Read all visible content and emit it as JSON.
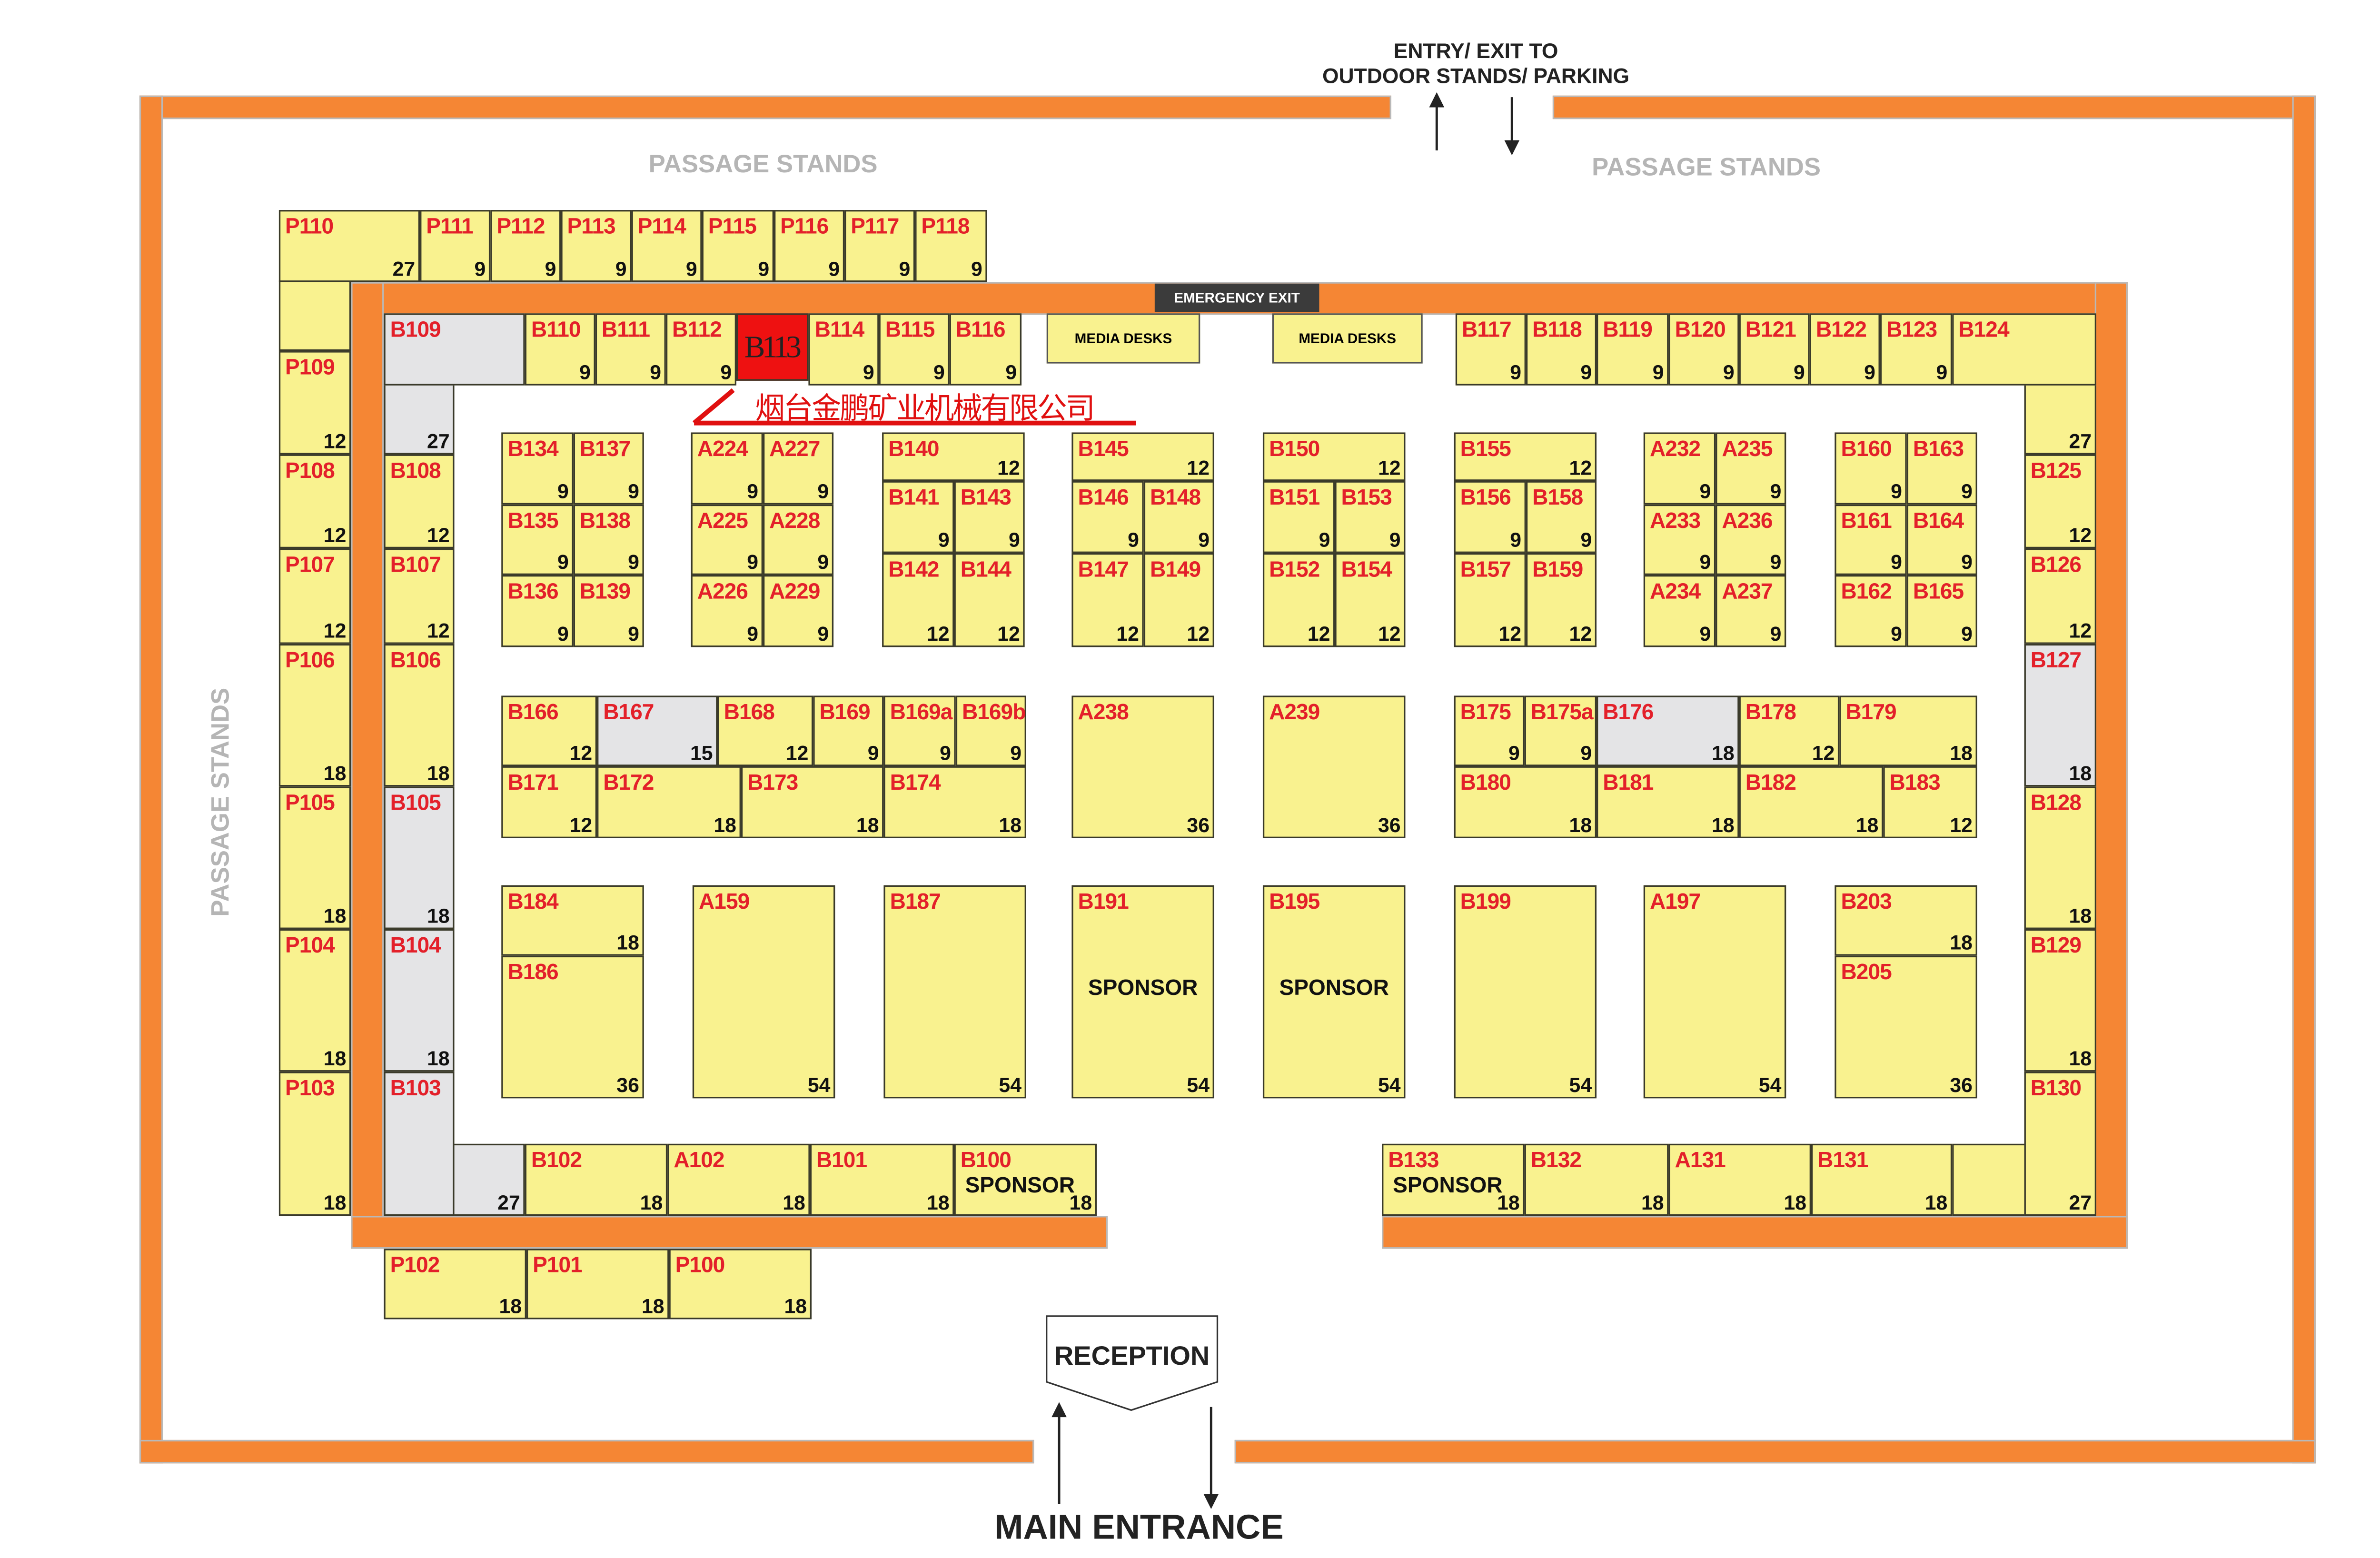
{
  "labels": {
    "entry_line1": "ENTRY/ EXIT TO",
    "entry_line2": "OUTDOOR STANDS/ PARKING",
    "passage_top_left": "PASSAGE STANDS",
    "passage_top_right": "PASSAGE STANDS",
    "passage_left": "PASSAGE STANDS",
    "emergency_exit": "EMERGENCY EXIT",
    "media_desks_1": "MEDIA DESKS",
    "media_desks_2": "MEDIA DESKS",
    "reception": "RECEPTION",
    "main_entrance": "MAIN ENTRANCE",
    "annotation": "烟台金鹏矿业机械有限公司"
  },
  "colors": {
    "booth": "#f9f28f",
    "booth_taken": "#e4e4e6",
    "highlight": "#ee1111",
    "aisle_wall": "#f58634",
    "booth_label": "#e3202a"
  },
  "booths": [
    {
      "id": "P110",
      "size": "27"
    },
    {
      "id": "P111",
      "size": "9"
    },
    {
      "id": "P112",
      "size": "9"
    },
    {
      "id": "P113",
      "size": "9"
    },
    {
      "id": "P114",
      "size": "9"
    },
    {
      "id": "P115",
      "size": "9"
    },
    {
      "id": "P116",
      "size": "9"
    },
    {
      "id": "P117",
      "size": "9"
    },
    {
      "id": "P118",
      "size": "9"
    },
    {
      "id": "P109",
      "size": "12"
    },
    {
      "id": "P108",
      "size": "12"
    },
    {
      "id": "P107",
      "size": "12"
    },
    {
      "id": "P106",
      "size": "18"
    },
    {
      "id": "P105",
      "size": "18"
    },
    {
      "id": "P104",
      "size": "18"
    },
    {
      "id": "P103",
      "size": "18"
    },
    {
      "id": "B109",
      "size": "27",
      "fill": "grey"
    },
    {
      "id": "B110",
      "size": "9"
    },
    {
      "id": "B111",
      "size": "9"
    },
    {
      "id": "B112",
      "size": "9"
    },
    {
      "id": "B113",
      "size": "",
      "fill": "red"
    },
    {
      "id": "B114",
      "size": "9"
    },
    {
      "id": "B115",
      "size": "9"
    },
    {
      "id": "B116",
      "size": "9"
    },
    {
      "id": "B117",
      "size": "9"
    },
    {
      "id": "B118",
      "size": "9"
    },
    {
      "id": "B119",
      "size": "9"
    },
    {
      "id": "B120",
      "size": "9"
    },
    {
      "id": "B121",
      "size": "9"
    },
    {
      "id": "B122",
      "size": "9"
    },
    {
      "id": "B123",
      "size": "9"
    },
    {
      "id": "B124",
      "size": "27"
    },
    {
      "id": "B125",
      "size": "12"
    },
    {
      "id": "B126",
      "size": "12"
    },
    {
      "id": "B127",
      "size": "18",
      "fill": "grey"
    },
    {
      "id": "B128",
      "size": "18"
    },
    {
      "id": "B129",
      "size": "18"
    },
    {
      "id": "B130",
      "size": "27"
    },
    {
      "id": "B108",
      "size": "12"
    },
    {
      "id": "B107",
      "size": "12"
    },
    {
      "id": "B106",
      "size": "18"
    },
    {
      "id": "B105",
      "size": "18",
      "fill": "grey"
    },
    {
      "id": "B104",
      "size": "18",
      "fill": "grey"
    },
    {
      "id": "B103",
      "size": "27",
      "fill": "grey"
    },
    {
      "id": "B102",
      "size": "18"
    },
    {
      "id": "A102",
      "size": "18"
    },
    {
      "id": "B101",
      "size": "18"
    },
    {
      "id": "B100",
      "size": "18",
      "note": "SPONSOR"
    },
    {
      "id": "P102",
      "size": "18"
    },
    {
      "id": "P101",
      "size": "18"
    },
    {
      "id": "P100",
      "size": "18"
    },
    {
      "id": "B133",
      "size": "18",
      "note": "SPONSOR"
    },
    {
      "id": "B132",
      "size": "18"
    },
    {
      "id": "A131",
      "size": "18"
    },
    {
      "id": "B131",
      "size": "18"
    },
    {
      "id": "B134",
      "size": "9"
    },
    {
      "id": "B137",
      "size": "9"
    },
    {
      "id": "B135",
      "size": "9"
    },
    {
      "id": "B138",
      "size": "9"
    },
    {
      "id": "B136",
      "size": "9"
    },
    {
      "id": "B139",
      "size": "9"
    },
    {
      "id": "A224",
      "size": "9"
    },
    {
      "id": "A227",
      "size": "9"
    },
    {
      "id": "A225",
      "size": "9"
    },
    {
      "id": "A228",
      "size": "9"
    },
    {
      "id": "A226",
      "size": "9"
    },
    {
      "id": "A229",
      "size": "9"
    },
    {
      "id": "B140",
      "size": "12"
    },
    {
      "id": "B141",
      "size": "9"
    },
    {
      "id": "B143",
      "size": "9"
    },
    {
      "id": "B142",
      "size": "12"
    },
    {
      "id": "B144",
      "size": "12"
    },
    {
      "id": "B145",
      "size": "12"
    },
    {
      "id": "B146",
      "size": "9"
    },
    {
      "id": "B148",
      "size": "9"
    },
    {
      "id": "B147",
      "size": "12"
    },
    {
      "id": "B149",
      "size": "12"
    },
    {
      "id": "B150",
      "size": "12"
    },
    {
      "id": "B151",
      "size": "9"
    },
    {
      "id": "B153",
      "size": "9"
    },
    {
      "id": "B152",
      "size": "12"
    },
    {
      "id": "B154",
      "size": "12"
    },
    {
      "id": "B155",
      "size": "12"
    },
    {
      "id": "B156",
      "size": "9"
    },
    {
      "id": "B158",
      "size": "9"
    },
    {
      "id": "B157",
      "size": "12"
    },
    {
      "id": "B159",
      "size": "12"
    },
    {
      "id": "A232",
      "size": "9"
    },
    {
      "id": "A235",
      "size": "9"
    },
    {
      "id": "A233",
      "size": "9"
    },
    {
      "id": "A236",
      "size": "9"
    },
    {
      "id": "A234",
      "size": "9"
    },
    {
      "id": "A237",
      "size": "9"
    },
    {
      "id": "B160",
      "size": "9"
    },
    {
      "id": "B163",
      "size": "9"
    },
    {
      "id": "B161",
      "size": "9"
    },
    {
      "id": "B164",
      "size": "9"
    },
    {
      "id": "B162",
      "size": "9"
    },
    {
      "id": "B165",
      "size": "9"
    },
    {
      "id": "B166",
      "size": "12"
    },
    {
      "id": "B167",
      "size": "15",
      "fill": "grey"
    },
    {
      "id": "B168",
      "size": "12"
    },
    {
      "id": "B169",
      "size": "9"
    },
    {
      "id": "B169a",
      "size": "9"
    },
    {
      "id": "B169b",
      "size": "9"
    },
    {
      "id": "B171",
      "size": "12"
    },
    {
      "id": "B172",
      "size": "18"
    },
    {
      "id": "B173",
      "size": "18"
    },
    {
      "id": "B174",
      "size": "18"
    },
    {
      "id": "A238",
      "size": "36"
    },
    {
      "id": "A239",
      "size": "36"
    },
    {
      "id": "B175",
      "size": "9"
    },
    {
      "id": "B175a",
      "size": "9"
    },
    {
      "id": "B176",
      "size": "18",
      "fill": "grey"
    },
    {
      "id": "B178",
      "size": "12"
    },
    {
      "id": "B179",
      "size": "18"
    },
    {
      "id": "B180",
      "size": "18"
    },
    {
      "id": "B181",
      "size": "18"
    },
    {
      "id": "B182",
      "size": "18"
    },
    {
      "id": "B183",
      "size": "12"
    },
    {
      "id": "B184",
      "size": "18"
    },
    {
      "id": "B186",
      "size": "36"
    },
    {
      "id": "A159",
      "size": "54"
    },
    {
      "id": "B187",
      "size": "54"
    },
    {
      "id": "B191",
      "size": "54",
      "note": "SPONSOR"
    },
    {
      "id": "B195",
      "size": "54",
      "note": "SPONSOR"
    },
    {
      "id": "B199",
      "size": "54"
    },
    {
      "id": "A197",
      "size": "54"
    },
    {
      "id": "B203",
      "size": "18"
    },
    {
      "id": "B205",
      "size": "36"
    }
  ]
}
